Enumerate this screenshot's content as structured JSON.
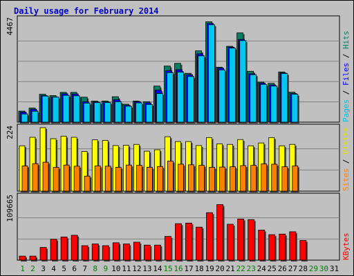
{
  "chart_data": [
    {
      "type": "bar",
      "title": "Daily usage for February 2014",
      "panel": "pages-files-hits",
      "ytick_label": "4467",
      "ylim": [
        0,
        4467
      ],
      "categories": [
        "1",
        "2",
        "3",
        "4",
        "5",
        "6",
        "7",
        "8",
        "9",
        "10",
        "11",
        "12",
        "13",
        "14",
        "15",
        "16",
        "17",
        "18",
        "19",
        "20",
        "21",
        "22",
        "23",
        "24",
        "25",
        "26",
        "27",
        "28",
        "29",
        "30",
        "31"
      ],
      "category_colors": {
        "weekday": "#000000",
        "weekend": "#008000",
        "weekend_days": [
          "1",
          "2",
          "8",
          "9",
          "15",
          "16",
          "22",
          "23",
          "29",
          "30"
        ]
      },
      "side_label": [
        {
          "text": "Pages",
          "color": "#00c0e0"
        },
        {
          "text": " / ",
          "color": "#000000"
        },
        {
          "text": "Files",
          "color": "#0000ff"
        },
        {
          "text": " / ",
          "color": "#000000"
        },
        {
          "text": "Hits",
          "color": "#008060"
        }
      ],
      "series": [
        {
          "name": "Hits",
          "color": "#008060",
          "values": [
            485,
            620,
            1230,
            1170,
            1310,
            1310,
            1100,
            930,
            930,
            1120,
            790,
            930,
            900,
            1590,
            2470,
            2590,
            2150,
            3140,
            4420,
            2420,
            3340,
            3930,
            2240,
            1760,
            1710,
            2210,
            1320,
            null,
            null,
            null,
            null
          ]
        },
        {
          "name": "Files",
          "color": "#0000ff",
          "values": [
            440,
            570,
            1170,
            1110,
            1250,
            1240,
            900,
            890,
            890,
            990,
            740,
            900,
            850,
            1410,
            2270,
            2310,
            2090,
            3010,
            4350,
            2380,
            3300,
            3640,
            2130,
            1720,
            1640,
            2170,
            1260,
            null,
            null,
            null,
            null
          ]
        },
        {
          "name": "Pages",
          "color": "#00c8f0",
          "values": [
            360,
            480,
            1150,
            1100,
            1180,
            1160,
            840,
            860,
            860,
            900,
            700,
            850,
            780,
            1260,
            2180,
            2200,
            2010,
            2920,
            4290,
            2300,
            3260,
            3590,
            2090,
            1660,
            1590,
            2140,
            1230,
            null,
            null,
            null,
            null
          ]
        }
      ]
    },
    {
      "type": "bar",
      "panel": "visits-sites",
      "ytick_label": "224",
      "ylim": [
        0,
        224
      ],
      "side_label": [
        {
          "text": "Sites",
          "color": "#ff8000"
        },
        {
          "text": " / ",
          "color": "#000000"
        },
        {
          "text": "Visits",
          "color": "#e0e000"
        }
      ],
      "series": [
        {
          "name": "Visits",
          "color": "#ffff00",
          "values": [
            160,
            190,
            224,
            185,
            194,
            190,
            140,
            181,
            179,
            161,
            162,
            165,
            141,
            146,
            192,
            175,
            175,
            161,
            189,
            167,
            165,
            182,
            160,
            170,
            189,
            160,
            165,
            null,
            null,
            null,
            null
          ]
        },
        {
          "name": "Sites",
          "color": "#ff8000",
          "values": [
            89,
            97,
            102,
            84,
            92,
            88,
            53,
            89,
            88,
            84,
            92,
            91,
            84,
            87,
            106,
            95,
            93,
            91,
            84,
            85,
            86,
            90,
            91,
            96,
            95,
            86,
            89,
            null,
            null,
            null,
            null
          ]
        }
      ]
    },
    {
      "type": "bar",
      "panel": "kbytes",
      "ytick_label": "109665",
      "ylim": [
        0,
        109665
      ],
      "side_label": [
        {
          "text": "KBytes",
          "color": "#ff0000"
        }
      ],
      "series": [
        {
          "name": "KBytes",
          "color": "#ff0000",
          "values": [
            7000,
            7000,
            22000,
            36000,
            40000,
            43000,
            25000,
            28000,
            25000,
            30000,
            28000,
            31000,
            26000,
            26000,
            41000,
            63000,
            64000,
            57000,
            82000,
            96000,
            62000,
            71000,
            70000,
            52000,
            44000,
            45000,
            49000,
            34000,
            null,
            null,
            null
          ]
        }
      ]
    }
  ]
}
